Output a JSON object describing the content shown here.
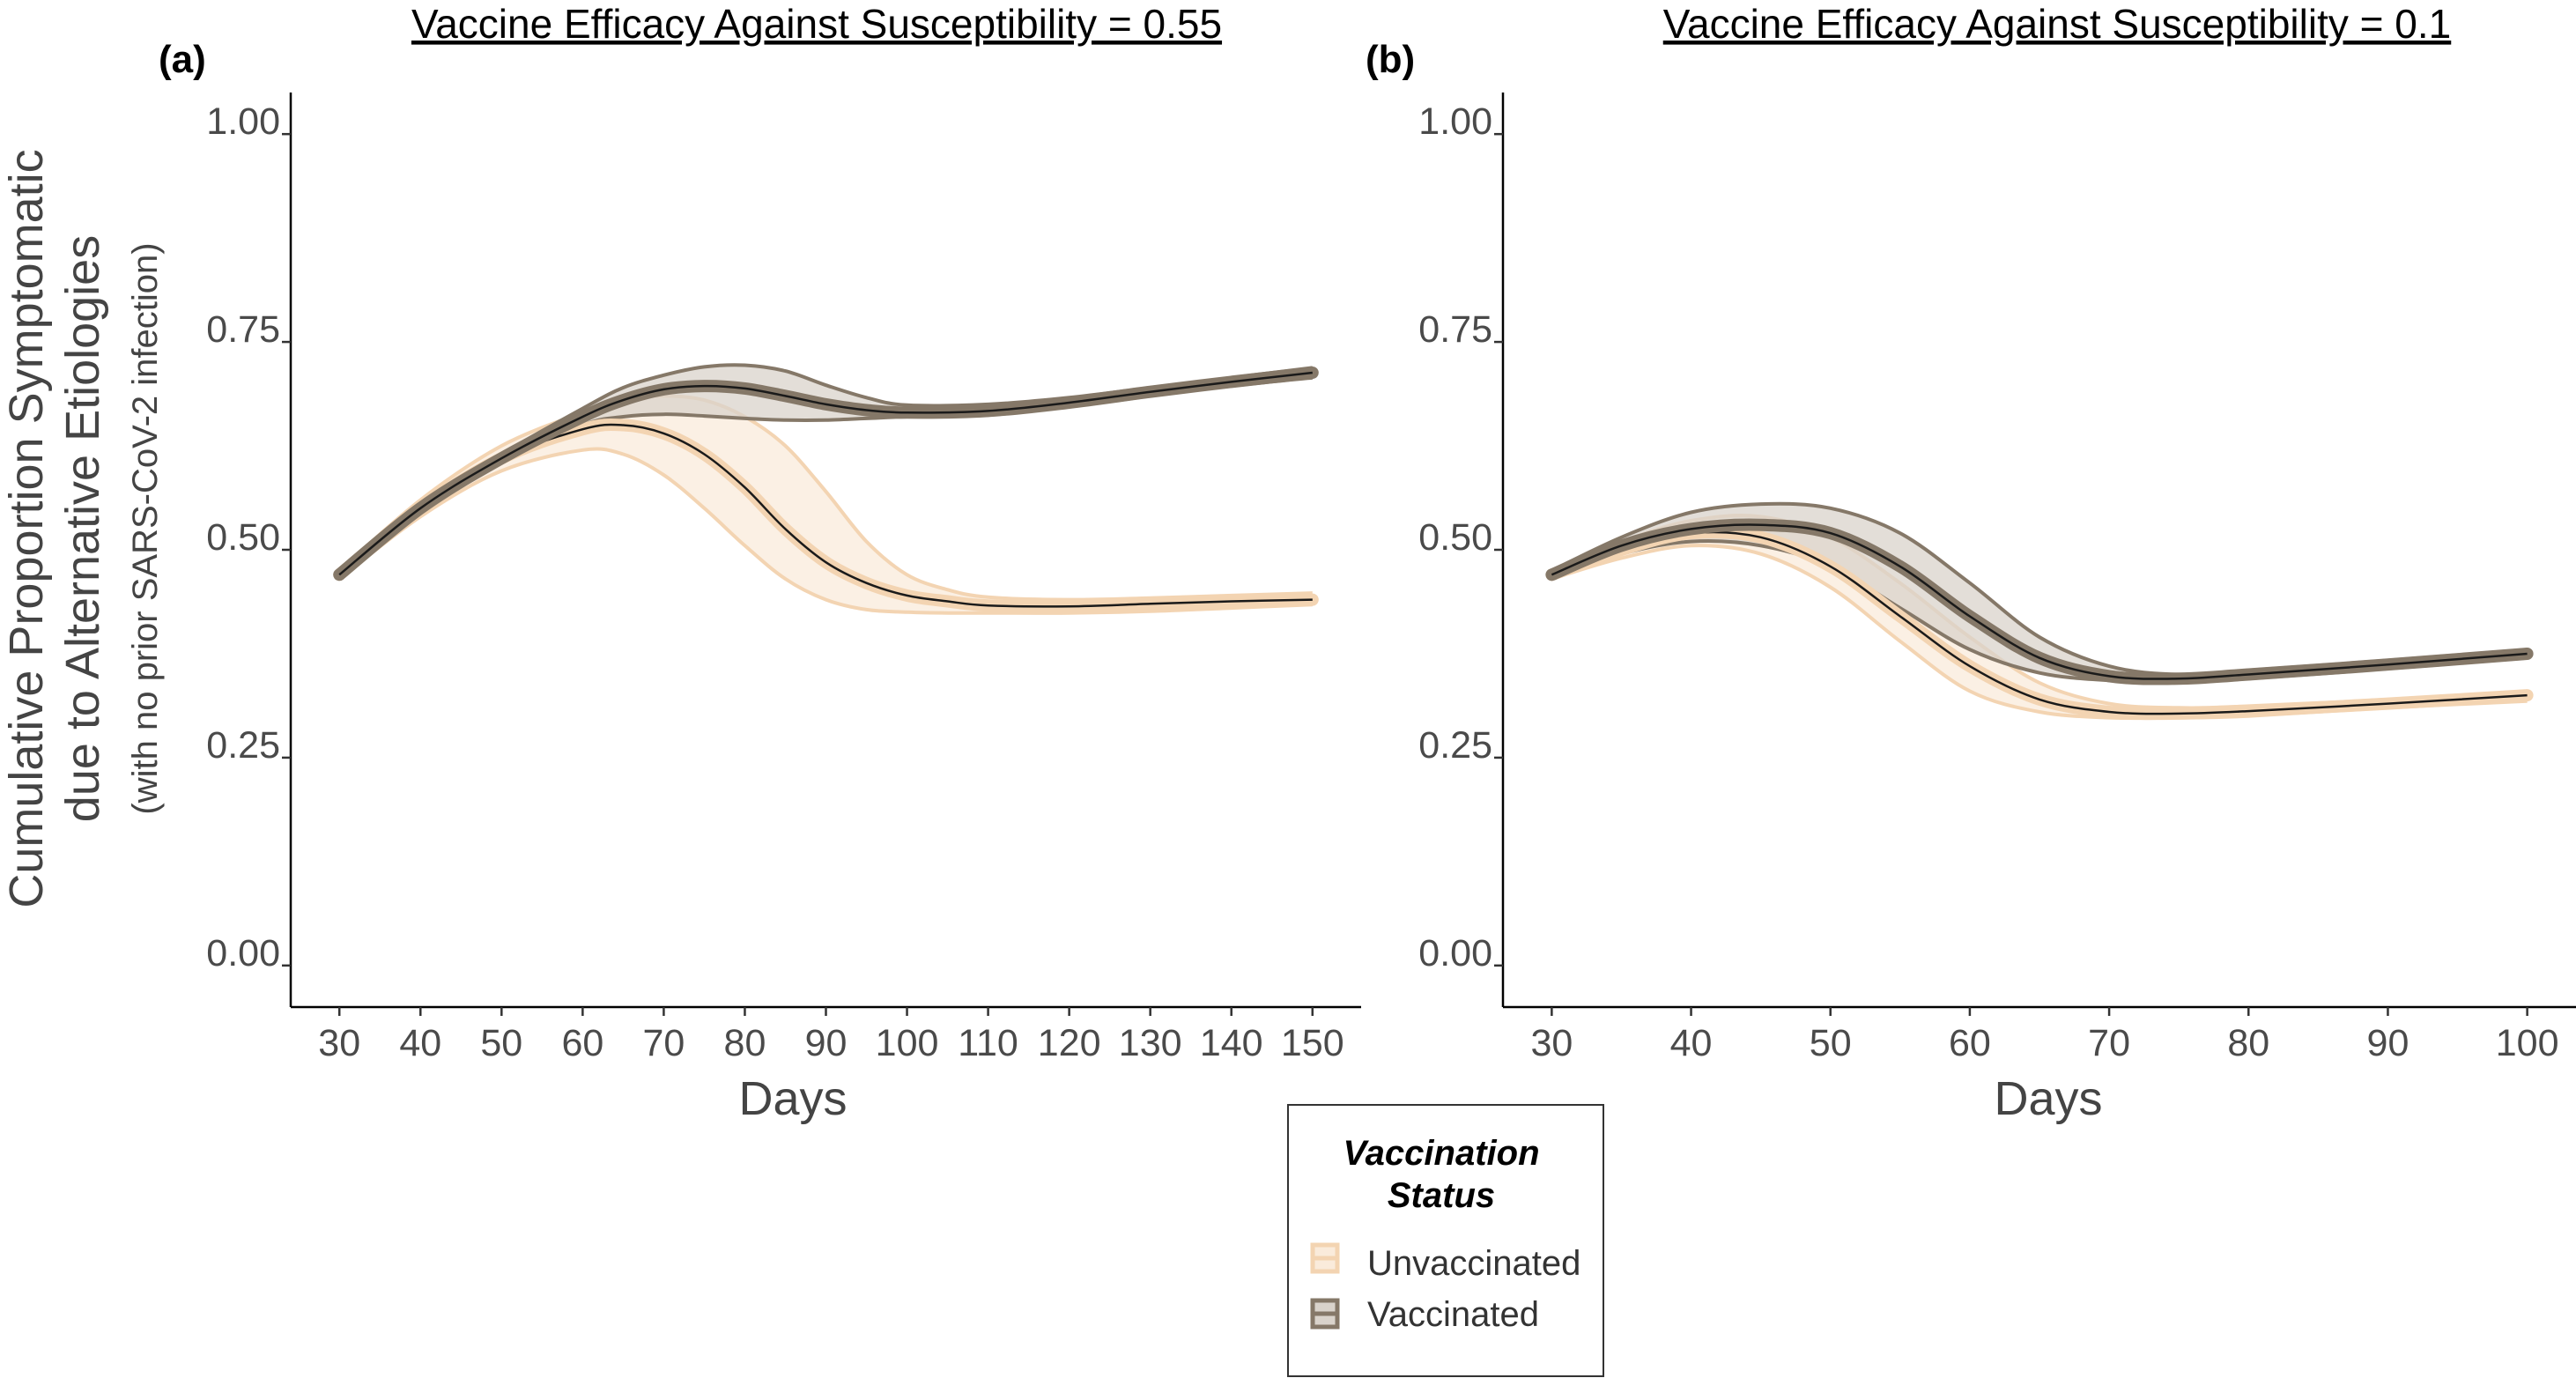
{
  "y_axis": {
    "label_line1": "Cumulative Proportion Symptomatic",
    "label_line2": "due to Alternative Etiologies",
    "label_line3": "(with no prior SARS-CoV-2 infection)"
  },
  "legend": {
    "title_line1": "Vaccination",
    "title_line2": "Status",
    "placement": "bottom-center",
    "items": [
      {
        "label": "Unvaccinated",
        "color": "#f3d4b2"
      },
      {
        "label": "Vaccinated",
        "color": "#857868"
      }
    ]
  },
  "colors": {
    "unvaccinated_line": "#f3d4b2",
    "unvaccinated_fill": "#faebdb",
    "vaccinated_line": "#857868",
    "vaccinated_fill": "#d9d3cb",
    "center_line": "#1a1a1a"
  },
  "chart_data": [
    {
      "tag": "(a)",
      "type": "area",
      "title": "Vaccine Efficacy Against Susceptibility = 0.55",
      "xlabel": "Days",
      "ylabel": "Cumulative Proportion Symptomatic due to Alternative Etiologies (with no prior SARS-CoV-2 infection)",
      "xlim": [
        24,
        156
      ],
      "ylim": [
        -0.05,
        1.05
      ],
      "x_ticks": [
        30,
        40,
        50,
        60,
        70,
        80,
        90,
        100,
        110,
        120,
        130,
        140,
        150
      ],
      "y_ticks": [
        0.0,
        0.25,
        0.5,
        0.75,
        1.0
      ],
      "y_tick_labels": [
        "0.00",
        "0.25",
        "0.50",
        "0.75",
        "1.00"
      ],
      "grid": false,
      "series": [
        {
          "name": "Unvaccinated",
          "x": [
            30,
            40,
            50,
            60,
            65,
            70,
            75,
            80,
            85,
            90,
            95,
            100,
            105,
            110,
            120,
            130,
            140,
            150
          ],
          "y": [
            0.47,
            0.55,
            0.61,
            0.645,
            0.65,
            0.64,
            0.615,
            0.575,
            0.525,
            0.485,
            0.46,
            0.445,
            0.438,
            0.433,
            0.432,
            0.435,
            0.438,
            0.44
          ],
          "lower": [
            0.465,
            0.54,
            0.595,
            0.62,
            0.615,
            0.59,
            0.55,
            0.505,
            0.465,
            0.44,
            0.428,
            0.425,
            0.424,
            0.424,
            0.424,
            0.426,
            0.43,
            0.434
          ],
          "upper": [
            0.475,
            0.56,
            0.625,
            0.665,
            0.68,
            0.685,
            0.68,
            0.66,
            0.625,
            0.57,
            0.51,
            0.47,
            0.452,
            0.443,
            0.44,
            0.442,
            0.445,
            0.448
          ]
        },
        {
          "name": "Vaccinated",
          "x": [
            30,
            40,
            50,
            60,
            65,
            70,
            75,
            80,
            85,
            90,
            95,
            100,
            110,
            120,
            130,
            140,
            150
          ],
          "y": [
            0.47,
            0.55,
            0.61,
            0.66,
            0.68,
            0.693,
            0.697,
            0.694,
            0.685,
            0.675,
            0.668,
            0.665,
            0.667,
            0.677,
            0.69,
            0.702,
            0.713
          ],
          "lower": [
            0.465,
            0.545,
            0.605,
            0.65,
            0.66,
            0.663,
            0.661,
            0.658,
            0.656,
            0.656,
            0.658,
            0.66,
            0.662,
            0.672,
            0.685,
            0.697,
            0.707
          ],
          "upper": [
            0.475,
            0.555,
            0.615,
            0.67,
            0.695,
            0.71,
            0.72,
            0.722,
            0.715,
            0.698,
            0.683,
            0.674,
            0.675,
            0.683,
            0.695,
            0.707,
            0.719
          ]
        }
      ]
    },
    {
      "tag": "(b)",
      "type": "area",
      "title": "Vaccine Efficacy Against Susceptibility = 0.1",
      "xlabel": "Days",
      "ylabel": "",
      "xlim": [
        26.5,
        103.5
      ],
      "ylim": [
        -0.05,
        1.05
      ],
      "x_ticks": [
        30,
        40,
        50,
        60,
        70,
        80,
        90,
        100
      ],
      "y_ticks": [
        0.0,
        0.25,
        0.5,
        0.75,
        1.0
      ],
      "y_tick_labels": [
        "0.00",
        "0.25",
        "0.50",
        "0.75",
        "1.00"
      ],
      "grid": false,
      "series": [
        {
          "name": "Unvaccinated",
          "x": [
            30,
            35,
            40,
            45,
            50,
            55,
            60,
            65,
            70,
            75,
            80,
            90,
            100
          ],
          "y": [
            0.47,
            0.5,
            0.52,
            0.515,
            0.48,
            0.42,
            0.36,
            0.32,
            0.305,
            0.303,
            0.306,
            0.315,
            0.325
          ],
          "lower": [
            0.465,
            0.49,
            0.505,
            0.495,
            0.455,
            0.39,
            0.33,
            0.305,
            0.298,
            0.298,
            0.3,
            0.31,
            0.318
          ],
          "upper": [
            0.475,
            0.51,
            0.535,
            0.54,
            0.515,
            0.46,
            0.395,
            0.34,
            0.315,
            0.31,
            0.312,
            0.32,
            0.33
          ]
        },
        {
          "name": "Vaccinated",
          "x": [
            30,
            35,
            40,
            45,
            50,
            55,
            60,
            65,
            70,
            75,
            80,
            90,
            100
          ],
          "y": [
            0.47,
            0.505,
            0.525,
            0.53,
            0.52,
            0.48,
            0.42,
            0.37,
            0.348,
            0.345,
            0.35,
            0.362,
            0.375
          ],
          "lower": [
            0.465,
            0.495,
            0.51,
            0.505,
            0.48,
            0.43,
            0.38,
            0.352,
            0.343,
            0.342,
            0.345,
            0.357,
            0.37
          ],
          "upper": [
            0.475,
            0.515,
            0.545,
            0.555,
            0.55,
            0.52,
            0.46,
            0.395,
            0.36,
            0.35,
            0.355,
            0.367,
            0.38
          ]
        }
      ]
    }
  ]
}
